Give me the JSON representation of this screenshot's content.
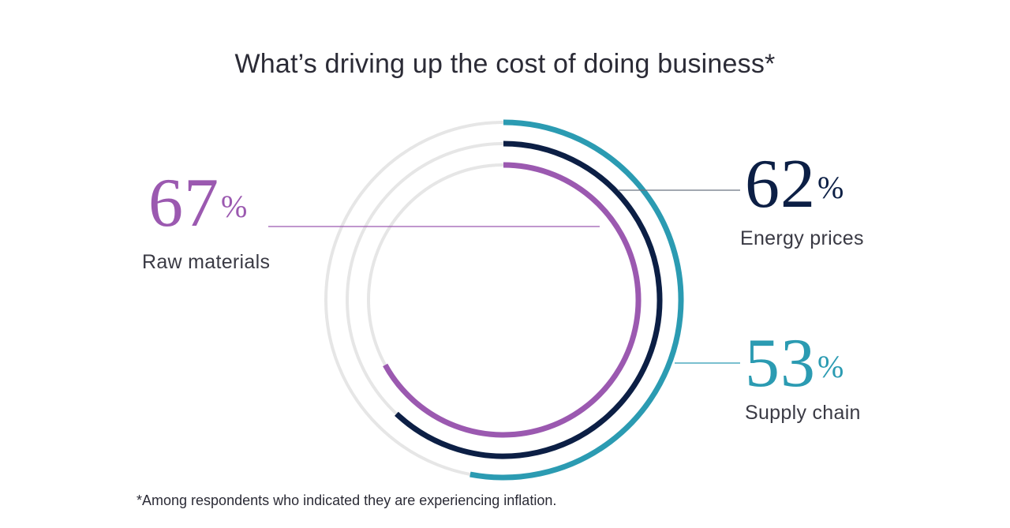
{
  "chart_data": {
    "type": "radial-bar",
    "title": "What’s driving up the cost of doing business*",
    "footnote": "*Among respondents who indicated they are experiencing inflation.",
    "unit": "%",
    "max": 100,
    "series": [
      {
        "name": "Supply chain",
        "value": 53,
        "value_label": "53",
        "color": "#2b9bb2"
      },
      {
        "name": "Energy prices",
        "value": 62,
        "value_label": "62",
        "color": "#0c1f45"
      },
      {
        "name": "Raw materials",
        "value": 67,
        "value_label": "67",
        "color": "#9b59b0"
      }
    ],
    "track_color": "#e6e6e6"
  }
}
